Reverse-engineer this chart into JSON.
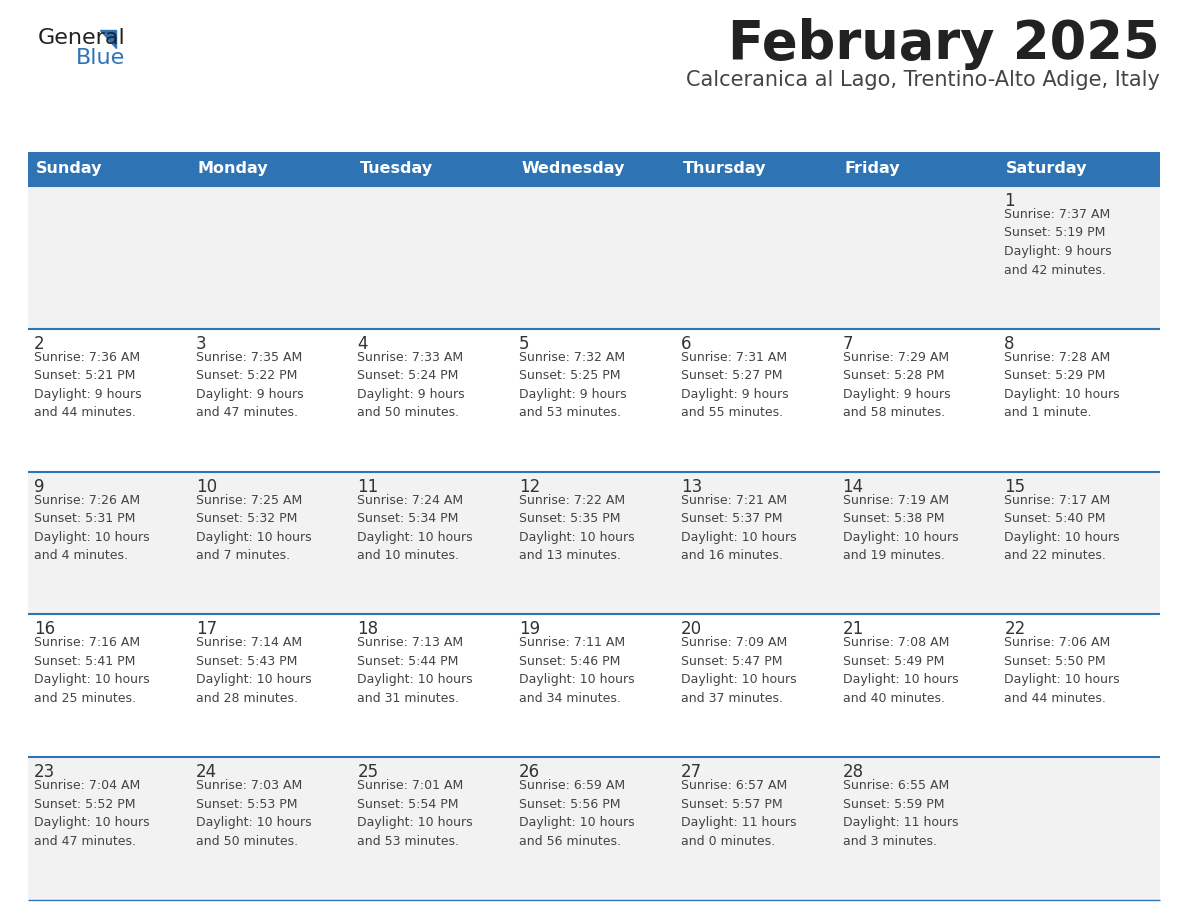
{
  "title": "February 2025",
  "subtitle": "Calceranica al Lago, Trentino-Alto Adige, Italy",
  "days_of_week": [
    "Sunday",
    "Monday",
    "Tuesday",
    "Wednesday",
    "Thursday",
    "Friday",
    "Saturday"
  ],
  "header_bg": "#2E74B5",
  "header_text": "#FFFFFF",
  "row_bg_light": "#F2F2F2",
  "row_bg_white": "#FFFFFF",
  "separator_color": "#2E74B5",
  "title_color": "#222222",
  "subtitle_color": "#444444",
  "day_num_color": "#333333",
  "info_color": "#444444",
  "calendar_data": [
    [
      {
        "day": null,
        "info": null
      },
      {
        "day": null,
        "info": null
      },
      {
        "day": null,
        "info": null
      },
      {
        "day": null,
        "info": null
      },
      {
        "day": null,
        "info": null
      },
      {
        "day": null,
        "info": null
      },
      {
        "day": "1",
        "info": "Sunrise: 7:37 AM\nSunset: 5:19 PM\nDaylight: 9 hours\nand 42 minutes."
      }
    ],
    [
      {
        "day": "2",
        "info": "Sunrise: 7:36 AM\nSunset: 5:21 PM\nDaylight: 9 hours\nand 44 minutes."
      },
      {
        "day": "3",
        "info": "Sunrise: 7:35 AM\nSunset: 5:22 PM\nDaylight: 9 hours\nand 47 minutes."
      },
      {
        "day": "4",
        "info": "Sunrise: 7:33 AM\nSunset: 5:24 PM\nDaylight: 9 hours\nand 50 minutes."
      },
      {
        "day": "5",
        "info": "Sunrise: 7:32 AM\nSunset: 5:25 PM\nDaylight: 9 hours\nand 53 minutes."
      },
      {
        "day": "6",
        "info": "Sunrise: 7:31 AM\nSunset: 5:27 PM\nDaylight: 9 hours\nand 55 minutes."
      },
      {
        "day": "7",
        "info": "Sunrise: 7:29 AM\nSunset: 5:28 PM\nDaylight: 9 hours\nand 58 minutes."
      },
      {
        "day": "8",
        "info": "Sunrise: 7:28 AM\nSunset: 5:29 PM\nDaylight: 10 hours\nand 1 minute."
      }
    ],
    [
      {
        "day": "9",
        "info": "Sunrise: 7:26 AM\nSunset: 5:31 PM\nDaylight: 10 hours\nand 4 minutes."
      },
      {
        "day": "10",
        "info": "Sunrise: 7:25 AM\nSunset: 5:32 PM\nDaylight: 10 hours\nand 7 minutes."
      },
      {
        "day": "11",
        "info": "Sunrise: 7:24 AM\nSunset: 5:34 PM\nDaylight: 10 hours\nand 10 minutes."
      },
      {
        "day": "12",
        "info": "Sunrise: 7:22 AM\nSunset: 5:35 PM\nDaylight: 10 hours\nand 13 minutes."
      },
      {
        "day": "13",
        "info": "Sunrise: 7:21 AM\nSunset: 5:37 PM\nDaylight: 10 hours\nand 16 minutes."
      },
      {
        "day": "14",
        "info": "Sunrise: 7:19 AM\nSunset: 5:38 PM\nDaylight: 10 hours\nand 19 minutes."
      },
      {
        "day": "15",
        "info": "Sunrise: 7:17 AM\nSunset: 5:40 PM\nDaylight: 10 hours\nand 22 minutes."
      }
    ],
    [
      {
        "day": "16",
        "info": "Sunrise: 7:16 AM\nSunset: 5:41 PM\nDaylight: 10 hours\nand 25 minutes."
      },
      {
        "day": "17",
        "info": "Sunrise: 7:14 AM\nSunset: 5:43 PM\nDaylight: 10 hours\nand 28 minutes."
      },
      {
        "day": "18",
        "info": "Sunrise: 7:13 AM\nSunset: 5:44 PM\nDaylight: 10 hours\nand 31 minutes."
      },
      {
        "day": "19",
        "info": "Sunrise: 7:11 AM\nSunset: 5:46 PM\nDaylight: 10 hours\nand 34 minutes."
      },
      {
        "day": "20",
        "info": "Sunrise: 7:09 AM\nSunset: 5:47 PM\nDaylight: 10 hours\nand 37 minutes."
      },
      {
        "day": "21",
        "info": "Sunrise: 7:08 AM\nSunset: 5:49 PM\nDaylight: 10 hours\nand 40 minutes."
      },
      {
        "day": "22",
        "info": "Sunrise: 7:06 AM\nSunset: 5:50 PM\nDaylight: 10 hours\nand 44 minutes."
      }
    ],
    [
      {
        "day": "23",
        "info": "Sunrise: 7:04 AM\nSunset: 5:52 PM\nDaylight: 10 hours\nand 47 minutes."
      },
      {
        "day": "24",
        "info": "Sunrise: 7:03 AM\nSunset: 5:53 PM\nDaylight: 10 hours\nand 50 minutes."
      },
      {
        "day": "25",
        "info": "Sunrise: 7:01 AM\nSunset: 5:54 PM\nDaylight: 10 hours\nand 53 minutes."
      },
      {
        "day": "26",
        "info": "Sunrise: 6:59 AM\nSunset: 5:56 PM\nDaylight: 10 hours\nand 56 minutes."
      },
      {
        "day": "27",
        "info": "Sunrise: 6:57 AM\nSunset: 5:57 PM\nDaylight: 11 hours\nand 0 minutes."
      },
      {
        "day": "28",
        "info": "Sunrise: 6:55 AM\nSunset: 5:59 PM\nDaylight: 11 hours\nand 3 minutes."
      },
      {
        "day": null,
        "info": null
      }
    ]
  ],
  "logo_color_general": "#222222",
  "logo_color_blue": "#2E74B5",
  "logo_triangle_color": "#2E74B5",
  "figwidth": 11.88,
  "figheight": 9.18,
  "dpi": 100
}
